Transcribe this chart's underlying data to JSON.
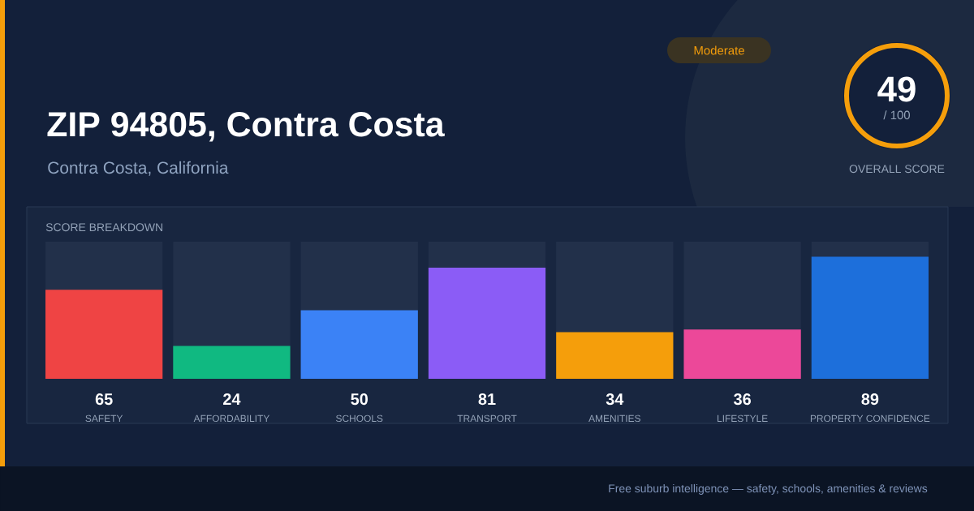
{
  "chart_data": {
    "type": "bar",
    "title": "ZIP 94805, Contra Costa",
    "subtitle": "Contra Costa, California",
    "annotations": [
      "SCORE BREAKDOWN",
      "Moderate",
      "49",
      "/ 100",
      "OVERALL SCORE",
      "Free suburb intelligence — safety, schools, amenities & reviews"
    ],
    "categories": [
      "SAFETY",
      "AFFORDABILITY",
      "SCHOOLS",
      "TRANSPORT",
      "AMENITIES",
      "LIFESTYLE",
      "PROPERTY CONFIDENCE"
    ],
    "values": [
      65,
      24,
      50,
      81,
      34,
      36,
      89
    ],
    "colors": [
      "#ef4444",
      "#10b981",
      "#3b82f6",
      "#8b5cf6",
      "#f59e0b",
      "#ec4899",
      "#1d6fdb"
    ],
    "ylim": [
      0,
      100
    ],
    "data_labels": true
  }
}
